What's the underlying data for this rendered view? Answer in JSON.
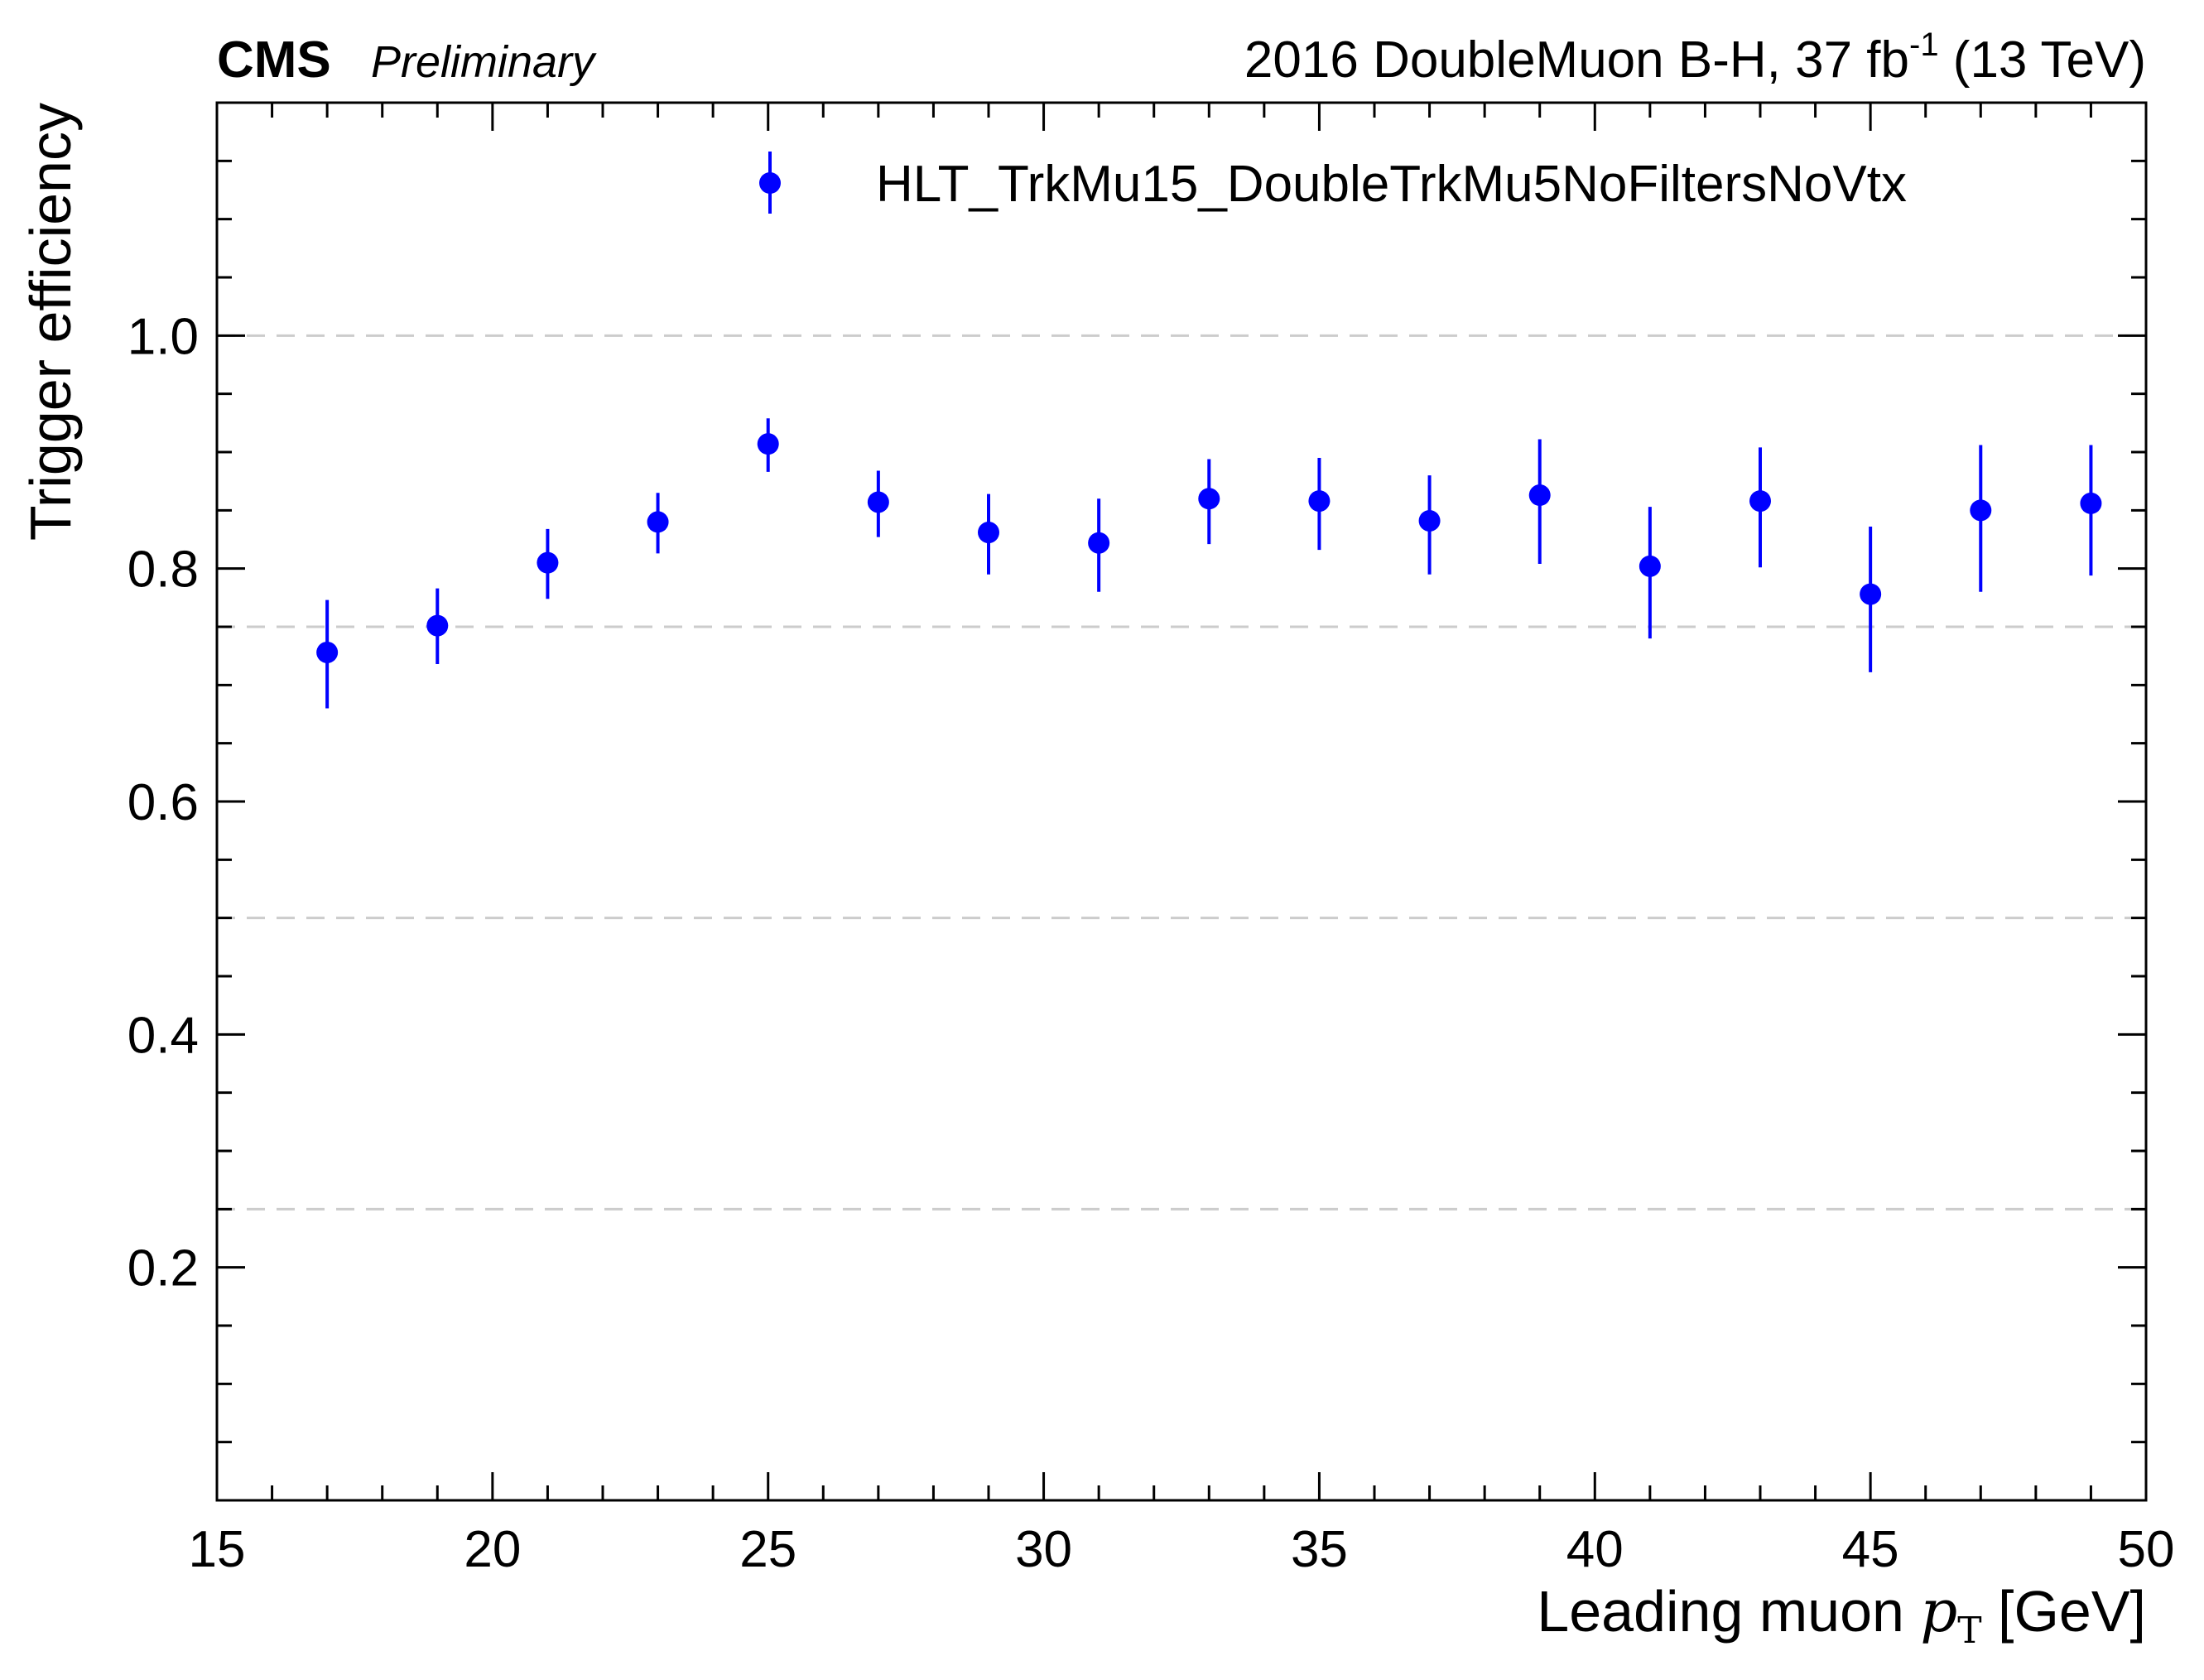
{
  "header": {
    "experiment": "CMS",
    "status": "Preliminary",
    "lumi_main": "2016 DoubleMuon B-H, 37 fb",
    "lumi_sup": "-1",
    "lumi_tail": " (13 TeV)"
  },
  "axes": {
    "ylabel": "Trigger efficiency",
    "xlabel_prefix": "Leading muon ",
    "xlabel_var": "p",
    "xlabel_sub": "T",
    "xlabel_suffix": " [GeV]"
  },
  "colors": {
    "marker": "#0000ff",
    "grid": "#cccccc",
    "axis": "#000000"
  },
  "chart_data": {
    "type": "scatter",
    "xlim": [
      15,
      50
    ],
    "ylim": [
      0,
      1.2
    ],
    "grid": "dashed horizontal lines at 0.25, 0.5, 0.75, 1.0",
    "grid_y": [
      0.25,
      0.5,
      0.75,
      1.0
    ],
    "legend_position": "top-right",
    "x_ticks": [
      "15",
      "20",
      "25",
      "30",
      "35",
      "40",
      "45",
      "50"
    ],
    "x_tick_values": [
      15,
      20,
      25,
      30,
      35,
      40,
      45,
      50
    ],
    "y_ticks": [
      "0.2",
      "0.4",
      "0.6",
      "0.8",
      "1.0"
    ],
    "y_tick_values": [
      0.2,
      0.4,
      0.6,
      0.8,
      1.0
    ],
    "series": [
      {
        "name": "HLT_TrkMu15_DoubleTrkMu5NoFiltersNoVtx",
        "color": "#0000ff",
        "x": [
          17,
          19,
          21,
          23,
          25,
          27,
          29,
          31,
          33,
          35,
          37,
          39,
          41,
          43,
          45,
          47,
          49
        ],
        "y": [
          0.728,
          0.751,
          0.805,
          0.84,
          0.907,
          0.857,
          0.831,
          0.822,
          0.86,
          0.858,
          0.841,
          0.863,
          0.802,
          0.858,
          0.778,
          0.85,
          0.856
        ],
        "yerr_low": [
          0.048,
          0.033,
          0.031,
          0.027,
          0.024,
          0.03,
          0.036,
          0.042,
          0.039,
          0.042,
          0.046,
          0.059,
          0.062,
          0.057,
          0.067,
          0.07,
          0.062
        ],
        "yerr_high": [
          0.045,
          0.032,
          0.029,
          0.025,
          0.022,
          0.027,
          0.033,
          0.038,
          0.034,
          0.037,
          0.039,
          0.048,
          0.051,
          0.046,
          0.058,
          0.056,
          0.05
        ]
      }
    ]
  }
}
